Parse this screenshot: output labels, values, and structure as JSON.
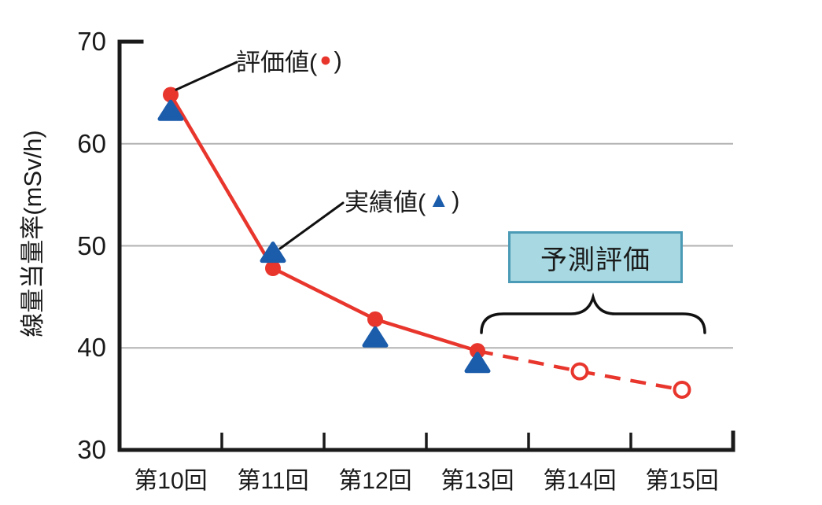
{
  "chart_data": {
    "type": "line",
    "categories": [
      "第10回",
      "第11回",
      "第12回",
      "第13回",
      "第14回",
      "第15回"
    ],
    "xlabel": "",
    "ylabel": "線量当量率(mSv/h)",
    "ylim": [
      30,
      70
    ],
    "yticks": [
      30,
      40,
      50,
      60,
      70
    ],
    "grid": "horizontal",
    "series": [
      {
        "name": "評価値",
        "marker": "circle",
        "color": "#e8362d",
        "values": [
          64.8,
          47.8,
          42.8,
          39.7,
          37.7,
          35.9
        ],
        "solid_through_index": 3,
        "open_marker_from_index": 4,
        "note": "indices 4-5 are predicted values: open circles on dashed line"
      },
      {
        "name": "実績値",
        "marker": "triangle",
        "color": "#1b5cab",
        "line": false,
        "values": [
          63.2,
          49.3,
          41.0,
          38.5,
          null,
          null
        ]
      }
    ]
  },
  "annotations": {
    "eval_prefix": "評価値(",
    "eval_glyph": "●",
    "eval_suffix": ")",
    "actual_prefix": "実績値(",
    "actual_glyph": "▲",
    "actual_suffix": ")",
    "prediction_label": "予測評価"
  },
  "colors": {
    "series_eval": "#e8362d",
    "series_actual": "#1b5cab",
    "prediction_box_fill": "#a8d9e2",
    "prediction_box_border": "#4b9ab6",
    "grid": "#b2b2b2",
    "axis": "#1a1a1a",
    "callout": "#111111"
  }
}
